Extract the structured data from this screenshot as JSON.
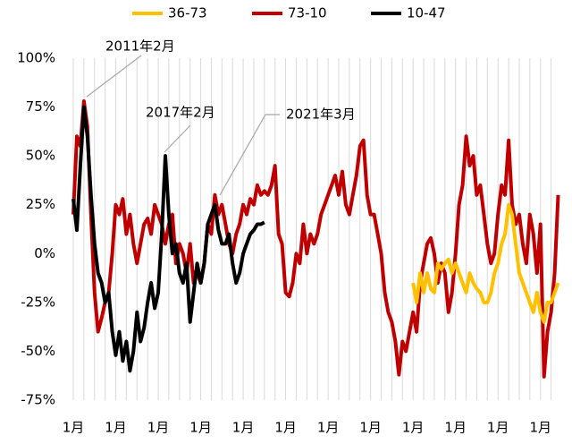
{
  "chart_data": {
    "type": "line",
    "annotations": [
      {
        "text": "2011年2月"
      },
      {
        "text": "2017年2月"
      },
      {
        "text": "2021年3月"
      }
    ],
    "categories": [
      "1月",
      null,
      null,
      null,
      null,
      null,
      null,
      null,
      null,
      null,
      null,
      null,
      "1月",
      null,
      null,
      null,
      null,
      null,
      null,
      null,
      null,
      null,
      null,
      null,
      "1月",
      null,
      null,
      null,
      null,
      null,
      null,
      null,
      null,
      null,
      null,
      null,
      "1月",
      null,
      null,
      null,
      null,
      null,
      null,
      null,
      null,
      null,
      null,
      null,
      "1月",
      null,
      null,
      null,
      null,
      null,
      null,
      null,
      null,
      null,
      null,
      null,
      "1月",
      null,
      null,
      null,
      null,
      null,
      null,
      null,
      null,
      null,
      null,
      null,
      "1月",
      null,
      null,
      null,
      null,
      null,
      null,
      null,
      null,
      null,
      null,
      null,
      "1月",
      null,
      null,
      null,
      null,
      null,
      null,
      null,
      null,
      null,
      null,
      null,
      "1月",
      null,
      null,
      null,
      null,
      null,
      null,
      null,
      null,
      null,
      null,
      null,
      "1月",
      null,
      null,
      null,
      null,
      null,
      null,
      null,
      null,
      null,
      null,
      null,
      "1月",
      null,
      null,
      null,
      null,
      null,
      null,
      null,
      null,
      null,
      null,
      null,
      "1月",
      null,
      null,
      null,
      null,
      null
    ],
    "series": [
      {
        "name": "36-73",
        "color": "#ffc000",
        "values": [
          null,
          null,
          null,
          null,
          null,
          null,
          null,
          null,
          null,
          null,
          null,
          null,
          null,
          null,
          null,
          null,
          null,
          null,
          null,
          null,
          null,
          null,
          null,
          null,
          null,
          null,
          null,
          null,
          null,
          null,
          null,
          null,
          null,
          null,
          null,
          null,
          null,
          null,
          null,
          null,
          null,
          null,
          null,
          null,
          null,
          null,
          null,
          null,
          null,
          null,
          null,
          null,
          null,
          null,
          null,
          null,
          null,
          null,
          null,
          null,
          null,
          null,
          null,
          null,
          null,
          null,
          null,
          null,
          null,
          null,
          null,
          null,
          null,
          null,
          null,
          null,
          null,
          null,
          null,
          null,
          null,
          null,
          null,
          null,
          null,
          null,
          null,
          null,
          null,
          null,
          null,
          null,
          null,
          null,
          null,
          null,
          -15,
          -25,
          -10,
          -20,
          -10,
          -18,
          -20,
          -5,
          -8,
          -5,
          -3,
          -10,
          -5,
          -10,
          -15,
          -20,
          -10,
          -15,
          -18,
          -20,
          -25,
          -25,
          -20,
          -10,
          -5,
          5,
          10,
          25,
          20,
          5,
          -10,
          -15,
          -20,
          -25,
          -30,
          -20,
          -30,
          -35,
          -25,
          -25,
          -20,
          -15
        ]
      },
      {
        "name": "73-10",
        "color": "#c00000",
        "values": [
          20,
          60,
          55,
          78,
          65,
          20,
          -20,
          -40,
          -33,
          -25,
          -20,
          0,
          25,
          20,
          28,
          10,
          20,
          5,
          -5,
          5,
          15,
          18,
          10,
          25,
          20,
          15,
          5,
          15,
          20,
          -5,
          5,
          0,
          -10,
          5,
          -15,
          -10,
          -15,
          -5,
          15,
          10,
          30,
          20,
          25,
          15,
          5,
          0,
          10,
          15,
          25,
          20,
          28,
          25,
          35,
          30,
          32,
          30,
          35,
          45,
          10,
          5,
          -20,
          -22,
          -15,
          0,
          -5,
          15,
          0,
          10,
          5,
          10,
          20,
          25,
          30,
          35,
          40,
          30,
          42,
          25,
          20,
          30,
          40,
          55,
          58,
          30,
          20,
          20,
          10,
          0,
          -20,
          -30,
          -35,
          -45,
          -62,
          -45,
          -50,
          -40,
          -30,
          -40,
          -15,
          -5,
          5,
          8,
          0,
          -15,
          -5,
          -10,
          -30,
          -20,
          0,
          25,
          35,
          60,
          45,
          50,
          30,
          35,
          20,
          5,
          -5,
          0,
          20,
          35,
          30,
          58,
          25,
          15,
          20,
          5,
          -5,
          20,
          10,
          -10,
          15,
          -63,
          -40,
          -30,
          -10,
          30
        ]
      },
      {
        "name": "10-47",
        "color": "#000000",
        "values": [
          28,
          12,
          45,
          75,
          60,
          30,
          5,
          -10,
          -15,
          -25,
          -20,
          -40,
          -52,
          -40,
          -55,
          -45,
          -60,
          -50,
          -30,
          -45,
          -38,
          -25,
          -15,
          -28,
          -20,
          10,
          50,
          20,
          0,
          5,
          -10,
          -15,
          -5,
          -35,
          -20,
          -5,
          -15,
          -5,
          15,
          20,
          25,
          12,
          5,
          5,
          10,
          -5,
          -15,
          -10,
          0,
          5,
          10,
          12,
          15,
          15,
          16,
          null,
          null,
          null,
          null,
          null,
          null,
          null,
          null,
          null,
          null,
          null,
          null,
          null,
          null,
          null,
          null,
          null,
          null,
          null,
          null,
          null,
          null,
          null,
          null,
          null,
          null,
          null,
          null,
          null,
          null,
          null,
          null,
          null,
          null,
          null,
          null,
          null,
          null,
          null,
          null,
          null,
          null,
          null,
          null,
          null,
          null,
          null,
          null,
          null,
          null,
          null,
          null,
          null,
          null,
          null,
          null,
          null,
          null,
          null,
          null,
          null,
          null,
          null,
          null,
          null,
          null,
          null,
          null,
          null,
          null,
          null,
          null,
          null,
          null,
          null,
          null,
          null,
          null,
          null,
          null,
          null,
          null,
          null
        ]
      }
    ],
    "ylim": [
      -75,
      100
    ],
    "yticks": [
      {
        "value": -75,
        "label": "-75%"
      },
      {
        "value": -50,
        "label": "-50%"
      },
      {
        "value": -25,
        "label": "-25%"
      },
      {
        "value": 0,
        "label": "0%"
      },
      {
        "value": 25,
        "label": "25%"
      },
      {
        "value": 50,
        "label": "50%"
      },
      {
        "value": 75,
        "label": "75%"
      },
      {
        "value": 100,
        "label": "100%"
      }
    ],
    "grid": true,
    "legend": "top"
  }
}
